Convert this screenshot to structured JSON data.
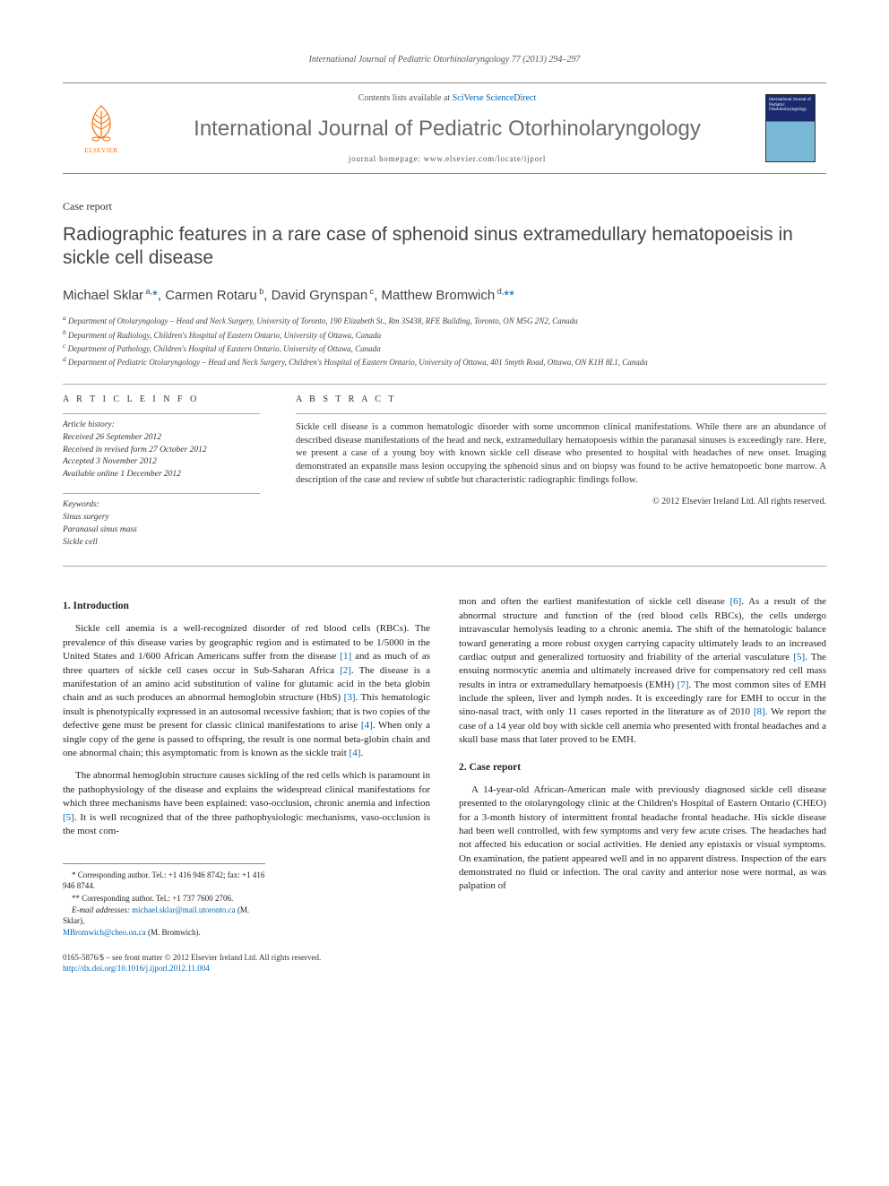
{
  "running_head": "International Journal of Pediatric Otorhinolaryngology 77 (2013) 294–297",
  "masthead": {
    "contents_prefix": "Contents lists available at ",
    "contents_link": "SciVerse ScienceDirect",
    "journal_name": "International Journal of Pediatric Otorhinolaryngology",
    "homepage_label": "journal homepage: ",
    "homepage_url": "www.elsevier.com/locate/ijporl",
    "publisher_name": "ELSEVIER",
    "cover_text": "International Journal of Pediatric Otorhinolaryngology"
  },
  "article": {
    "type": "Case report",
    "title": "Radiographic features in a rare case of sphenoid sinus extramedullary hematopoeisis in sickle cell disease",
    "authors_html": "Michael Sklar<sup> a,</sup><a href=\"#\">*</a>, Carmen Rotaru<sup> b</sup>, David Grynspan<sup> c</sup>, Matthew Bromwich<sup> d,</sup><a href=\"#\">**</a>",
    "affiliations": [
      "a Department of Otolaryngology – Head and Neck Surgery, University of Toronto, 190 Elizabeth St., Rm 3S438, RFE Building, Toronto, ON M5G 2N2, Canada",
      "b Department of Radiology, Children's Hospital of Eastern Ontario, University of Ottawa, Canada",
      "c Department of Pathology, Children's Hospital of Eastern Ontario, University of Ottawa, Canada",
      "d Department of Pediatric Otolaryngology – Head and Neck Surgery, Children's Hospital of Eastern Ontario, University of Ottawa, 401 Smyth Road, Ottawa, ON K1H 8L1, Canada"
    ]
  },
  "article_info": {
    "head": "A R T I C L E   I N F O",
    "history_label": "Article history:",
    "history": [
      "Received 26 September 2012",
      "Received in revised form 27 October 2012",
      "Accepted 3 November 2012",
      "Available online 1 December 2012"
    ],
    "keywords_label": "Keywords:",
    "keywords": [
      "Sinus surgery",
      "Paranasal sinus mass",
      "Sickle cell"
    ]
  },
  "abstract": {
    "head": "A B S T R A C T",
    "text": "Sickle cell disease is a common hematologic disorder with some uncommon clinical manifestations. While there are an abundance of described disease manifestations of the head and neck, extramedullary hematopoesis within the paranasal sinuses is exceedingly rare. Here, we present a case of a young boy with known sickle cell disease who presented to hospital with headaches of new onset. Imaging demonstrated an expansile mass lesion occupying the sphenoid sinus and on biopsy was found to be active hematopoetic bone marrow. A description of the case and review of subtle but characteristic radiographic findings follow.",
    "copyright": "© 2012 Elsevier Ireland Ltd. All rights reserved."
  },
  "sections": {
    "intro_head": "1. Introduction",
    "intro_p1": "Sickle cell anemia is a well-recognized disorder of red blood cells (RBCs). The prevalence of this disease varies by geographic region and is estimated to be 1/5000 in the United States and 1/600 African Americans suffer from the disease [1] and as much of as three quarters of sickle cell cases occur in Sub-Saharan Africa [2]. The disease is a manifestation of an amino acid substitution of valine for glutamic acid in the beta globin chain and as such produces an abnormal hemoglobin structure (HbS) [3]. This hematologic insult is phenotypically expressed in an autosomal recessive fashion; that is two copies of the defective gene must be present for classic clinical manifestations to arise [4]. When only a single copy of the gene is passed to offspring, the result is one normal beta-globin chain and one abnormal chain; this asymptomatic from is known as the sickle trait [4].",
    "intro_p2": "The abnormal hemoglobin structure causes sickling of the red cells which is paramount in the pathophysiology of the disease and explains the widespread clinical manifestations for which three mechanisms have been explained: vaso-occlusion, chronic anemia and infection [5]. It is well recognized that of the three pathophysiologic mechanisms, vaso-occlusion is the most com",
    "intro_p2_cont": "mon and often the earliest manifestation of sickle cell disease [6]. As a result of the abnormal structure and function of the (red blood cells RBCs), the cells undergo intravascular hemolysis leading to a chronic anemia. The shift of the hematologic balance toward generating a more robust oxygen carrying capacity ultimately leads to an increased cardiac output and generalized tortuosity and friability of the arterial vasculature [5]. The ensuing normocytic anemia and ultimately increased drive for compensatory red cell mass results in intra or extramedullary hematpoesis (EMH) [7]. The most common sites of EMH include the spleen, liver and lymph nodes. It is exceedingly rare for EMH to occur in the sino-nasal tract, with only 11 cases reported in the literature as of 2010 [8]. We report the case of a 14 year old boy with sickle cell anemia who presented with frontal headaches and a skull base mass that later proved to be EMH.",
    "case_head": "2. Case report",
    "case_p1": "A 14-year-old African-American male with previously diagnosed sickle cell disease presented to the otolaryngology clinic at the Children's Hospital of Eastern Ontario (CHEO) for a 3-month history of intermittent frontal headache frontal headache. His sickle disease had been well controlled, with few symptoms and very few acute crises. The headaches had not affected his education or social activities. He denied any epistaxis or visual symptoms. On examination, the patient appeared well and in no apparent distress. Inspection of the ears demonstrated no fluid or infection. The oral cavity and anterior nose were normal, as was palpation of"
  },
  "footnotes": {
    "c1": "* Corresponding author. Tel.: +1 416 946 8742; fax: +1 416 946 8744.",
    "c2": "** Corresponding author. Tel.: +1 737 7600 2706.",
    "emails_label": "E-mail addresses: ",
    "email1": "michael.sklar@mail.utoronto.ca",
    "email1_who": " (M. Sklar),",
    "email2": "MBromwich@cheo.on.ca",
    "email2_who": " (M. Bromwich)."
  },
  "page_footer": {
    "line1": "0165-5876/$ – see front matter © 2012 Elsevier Ireland Ltd. All rights reserved.",
    "doi": "http://dx.doi.org/10.1016/j.ijporl.2012.11.004"
  },
  "colors": {
    "link": "#0066b3",
    "publisher_orange": "#ff6a00",
    "rule": "#aaaaaa",
    "text": "#333333"
  },
  "typography": {
    "body_font": "Georgia, Times New Roman, serif",
    "title_font": "Trebuchet MS, Arial, sans-serif",
    "title_size_pt": 16,
    "journal_name_size_pt": 18,
    "body_size_pt": 8.5
  }
}
